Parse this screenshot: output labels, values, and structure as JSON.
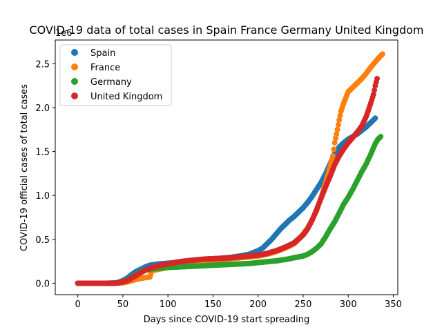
{
  "chart_data": {
    "type": "scatter",
    "title": "COVID-19 data of total cases in Spain France Germany United Kingdom",
    "xlabel": "Days since COVID-19 start spreading",
    "ylabel": "COVID-19 official cases of total cases",
    "y_offset_label": "1e6",
    "xlim": [
      -25,
      355
    ],
    "ylim": [
      -0.13,
      2.77
    ],
    "y_scale_unit": 1000000,
    "xticks": [
      0,
      50,
      100,
      150,
      200,
      250,
      300,
      350
    ],
    "xtick_labels": [
      "0",
      "50",
      "100",
      "150",
      "200",
      "250",
      "300",
      "350"
    ],
    "yticks": [
      0.0,
      0.5,
      1.0,
      1.5,
      2.0,
      2.5
    ],
    "ytick_labels": [
      "0.0",
      "0.5",
      "1.0",
      "1.5",
      "2.0",
      "2.5"
    ],
    "grid": false,
    "legend_position": "top-left",
    "series": [
      {
        "name": "Spain",
        "color": "#1f77b4",
        "x": [
          0,
          30,
          40,
          45,
          50,
          55,
          60,
          65,
          70,
          75,
          80,
          90,
          100,
          110,
          120,
          130,
          140,
          150,
          160,
          170,
          180,
          190,
          200,
          205,
          210,
          215,
          220,
          225,
          230,
          235,
          240,
          245,
          250,
          255,
          260,
          265,
          270,
          275,
          280,
          285,
          290,
          295,
          300,
          305,
          310,
          315,
          320,
          325,
          330
        ],
        "y": [
          0,
          0,
          0.002,
          0.01,
          0.03,
          0.06,
          0.1,
          0.135,
          0.16,
          0.185,
          0.205,
          0.22,
          0.228,
          0.235,
          0.245,
          0.255,
          0.265,
          0.275,
          0.285,
          0.295,
          0.31,
          0.33,
          0.37,
          0.4,
          0.45,
          0.5,
          0.56,
          0.62,
          0.67,
          0.72,
          0.76,
          0.81,
          0.86,
          0.92,
          0.99,
          1.07,
          1.15,
          1.25,
          1.36,
          1.48,
          1.55,
          1.6,
          1.64,
          1.67,
          1.7,
          1.74,
          1.78,
          1.83,
          1.88
        ]
      },
      {
        "name": "France",
        "color": "#ff7f0e",
        "x": [
          0,
          40,
          50,
          55,
          60,
          65,
          70,
          75,
          80,
          82,
          85,
          90,
          100,
          110,
          120,
          130,
          140,
          150,
          160,
          170,
          180,
          190,
          200,
          210,
          220,
          230,
          240,
          245,
          250,
          255,
          260,
          265,
          270,
          275,
          280,
          283,
          285,
          288,
          290,
          292,
          295,
          298,
          300,
          305,
          310,
          315,
          320,
          325,
          330,
          335,
          338
        ],
        "y": [
          0,
          0,
          0.005,
          0.015,
          0.03,
          0.045,
          0.055,
          0.065,
          0.07,
          0.14,
          0.15,
          0.16,
          0.18,
          0.2,
          0.22,
          0.235,
          0.25,
          0.26,
          0.27,
          0.28,
          0.29,
          0.3,
          0.31,
          0.33,
          0.36,
          0.4,
          0.45,
          0.5,
          0.56,
          0.63,
          0.72,
          0.83,
          0.98,
          1.15,
          1.33,
          1.45,
          1.6,
          1.75,
          1.86,
          1.96,
          2.05,
          2.13,
          2.18,
          2.23,
          2.28,
          2.33,
          2.39,
          2.46,
          2.52,
          2.58,
          2.61
        ]
      },
      {
        "name": "Germany",
        "color": "#2ca02c",
        "x": [
          0,
          35,
          45,
          50,
          55,
          60,
          65,
          70,
          75,
          80,
          90,
          100,
          110,
          120,
          130,
          140,
          150,
          160,
          170,
          180,
          190,
          200,
          210,
          220,
          230,
          240,
          250,
          255,
          260,
          265,
          270,
          275,
          280,
          285,
          290,
          295,
          300,
          305,
          310,
          315,
          320,
          325,
          330,
          333,
          336
        ],
        "y": [
          0,
          0,
          0.005,
          0.02,
          0.04,
          0.07,
          0.1,
          0.13,
          0.15,
          0.16,
          0.17,
          0.18,
          0.185,
          0.19,
          0.195,
          0.2,
          0.205,
          0.21,
          0.215,
          0.22,
          0.225,
          0.235,
          0.245,
          0.255,
          0.27,
          0.29,
          0.31,
          0.33,
          0.36,
          0.4,
          0.45,
          0.53,
          0.62,
          0.7,
          0.8,
          0.9,
          0.98,
          1.07,
          1.17,
          1.27,
          1.36,
          1.47,
          1.59,
          1.64,
          1.67
        ]
      },
      {
        "name": "United Kingdom",
        "color": "#d62728",
        "x": [
          0,
          40,
          45,
          50,
          55,
          60,
          65,
          70,
          75,
          80,
          90,
          100,
          110,
          120,
          130,
          140,
          150,
          160,
          170,
          180,
          190,
          200,
          210,
          220,
          230,
          240,
          250,
          255,
          260,
          265,
          270,
          275,
          280,
          285,
          290,
          295,
          300,
          305,
          310,
          315,
          320,
          325,
          328,
          330,
          332
        ],
        "y": [
          0,
          0,
          0.005,
          0.015,
          0.03,
          0.06,
          0.09,
          0.12,
          0.15,
          0.17,
          0.2,
          0.22,
          0.24,
          0.255,
          0.265,
          0.275,
          0.28,
          0.285,
          0.29,
          0.3,
          0.31,
          0.32,
          0.34,
          0.37,
          0.41,
          0.46,
          0.55,
          0.62,
          0.72,
          0.84,
          0.97,
          1.1,
          1.22,
          1.35,
          1.45,
          1.53,
          1.6,
          1.66,
          1.72,
          1.79,
          1.9,
          2.05,
          2.15,
          2.25,
          2.33
        ]
      }
    ]
  }
}
